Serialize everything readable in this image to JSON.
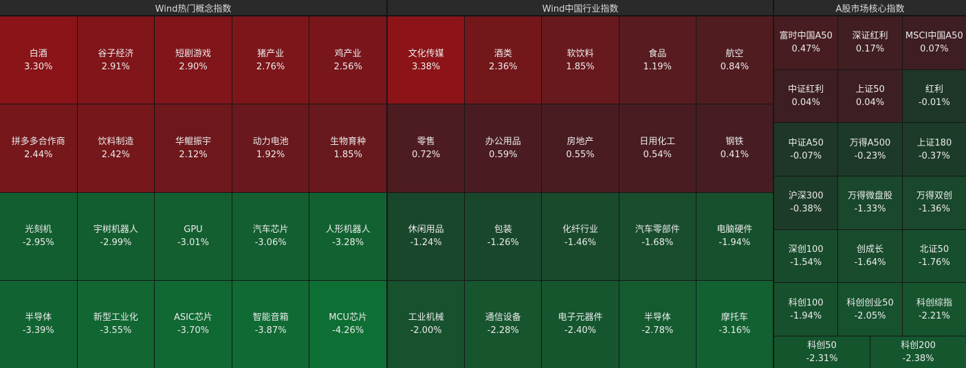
{
  "panels": [
    {
      "title": "Wind热门概念指数",
      "rows": [
        [
          {
            "name": "白酒",
            "value": 3.3,
            "value_label": "3.30%"
          },
          {
            "name": "谷子经济",
            "value": 2.91,
            "value_label": "2.91%"
          },
          {
            "name": "短剧游戏",
            "value": 2.9,
            "value_label": "2.90%"
          },
          {
            "name": "猪产业",
            "value": 2.76,
            "value_label": "2.76%"
          },
          {
            "name": "鸡产业",
            "value": 2.56,
            "value_label": "2.56%"
          }
        ],
        [
          {
            "name": "拼多多合作商",
            "value": 2.44,
            "value_label": "2.44%"
          },
          {
            "name": "饮料制造",
            "value": 2.42,
            "value_label": "2.42%"
          },
          {
            "name": "华鲲振宇",
            "value": 2.12,
            "value_label": "2.12%"
          },
          {
            "name": "动力电池",
            "value": 1.92,
            "value_label": "1.92%"
          },
          {
            "name": "生物育种",
            "value": 1.85,
            "value_label": "1.85%"
          }
        ],
        [
          {
            "name": "光刻机",
            "value": -2.95,
            "value_label": "-2.95%"
          },
          {
            "name": "宇树机器人",
            "value": -2.99,
            "value_label": "-2.99%"
          },
          {
            "name": "GPU",
            "value": -3.01,
            "value_label": "-3.01%"
          },
          {
            "name": "汽车芯片",
            "value": -3.06,
            "value_label": "-3.06%"
          },
          {
            "name": "人形机器人",
            "value": -3.28,
            "value_label": "-3.28%"
          }
        ],
        [
          {
            "name": "半导体",
            "value": -3.39,
            "value_label": "-3.39%"
          },
          {
            "name": "新型工业化",
            "value": -3.55,
            "value_label": "-3.55%"
          },
          {
            "name": "ASIC芯片",
            "value": -3.7,
            "value_label": "-3.70%"
          },
          {
            "name": "智能音箱",
            "value": -3.87,
            "value_label": "-3.87%"
          },
          {
            "name": "MCU芯片",
            "value": -4.26,
            "value_label": "-4.26%"
          }
        ]
      ]
    },
    {
      "title": "Wind中国行业指数",
      "rows": [
        [
          {
            "name": "文化传媒",
            "value": 3.38,
            "value_label": "3.38%"
          },
          {
            "name": "酒类",
            "value": 2.36,
            "value_label": "2.36%"
          },
          {
            "name": "软饮料",
            "value": 1.85,
            "value_label": "1.85%"
          },
          {
            "name": "食品",
            "value": 1.19,
            "value_label": "1.19%"
          },
          {
            "name": "航空",
            "value": 0.84,
            "value_label": "0.84%"
          }
        ],
        [
          {
            "name": "零售",
            "value": 0.72,
            "value_label": "0.72%"
          },
          {
            "name": "办公用品",
            "value": 0.59,
            "value_label": "0.59%"
          },
          {
            "name": "房地产",
            "value": 0.55,
            "value_label": "0.55%"
          },
          {
            "name": "日用化工",
            "value": 0.54,
            "value_label": "0.54%"
          },
          {
            "name": "钢铁",
            "value": 0.41,
            "value_label": "0.41%"
          }
        ],
        [
          {
            "name": "休闲用品",
            "value": -1.24,
            "value_label": "-1.24%"
          },
          {
            "name": "包装",
            "value": -1.26,
            "value_label": "-1.26%"
          },
          {
            "name": "化纤行业",
            "value": -1.46,
            "value_label": "-1.46%"
          },
          {
            "name": "汽车零部件",
            "value": -1.68,
            "value_label": "-1.68%"
          },
          {
            "name": "电脑硬件",
            "value": -1.94,
            "value_label": "-1.94%"
          }
        ],
        [
          {
            "name": "工业机械",
            "value": -2.0,
            "value_label": "-2.00%"
          },
          {
            "name": "通信设备",
            "value": -2.28,
            "value_label": "-2.28%"
          },
          {
            "name": "电子元器件",
            "value": -2.4,
            "value_label": "-2.40%"
          },
          {
            "name": "半导体",
            "value": -2.78,
            "value_label": "-2.78%"
          },
          {
            "name": "摩托车",
            "value": -3.16,
            "value_label": "-3.16%"
          }
        ]
      ]
    },
    {
      "title": "A股市场核心指数",
      "rows": [
        [
          {
            "name": "富时中国A50",
            "value": 0.47,
            "value_label": "0.47%"
          },
          {
            "name": "深证红利",
            "value": 0.17,
            "value_label": "0.17%"
          },
          {
            "name": "MSCI中国A50",
            "value": 0.07,
            "value_label": "0.07%"
          }
        ],
        [
          {
            "name": "中证红利",
            "value": 0.04,
            "value_label": "0.04%"
          },
          {
            "name": "上证50",
            "value": 0.04,
            "value_label": "0.04%"
          },
          {
            "name": "红利",
            "value": -0.01,
            "value_label": "-0.01%"
          }
        ],
        [
          {
            "name": "中证A50",
            "value": -0.07,
            "value_label": "-0.07%"
          },
          {
            "name": "万得A500",
            "value": -0.23,
            "value_label": "-0.23%"
          },
          {
            "name": "上证180",
            "value": -0.37,
            "value_label": "-0.37%"
          }
        ],
        [
          {
            "name": "沪深300",
            "value": -0.38,
            "value_label": "-0.38%"
          },
          {
            "name": "万得微盘股",
            "value": -1.33,
            "value_label": "-1.33%"
          },
          {
            "name": "万得双创",
            "value": -1.36,
            "value_label": "-1.36%"
          }
        ],
        [
          {
            "name": "深创100",
            "value": -1.54,
            "value_label": "-1.54%"
          },
          {
            "name": "创成长",
            "value": -1.64,
            "value_label": "-1.64%"
          },
          {
            "name": "北证50",
            "value": -1.76,
            "value_label": "-1.76%"
          }
        ],
        [
          {
            "name": "科创100",
            "value": -1.94,
            "value_label": "-1.94%"
          },
          {
            "name": "科创创业50",
            "value": -2.05,
            "value_label": "-2.05%"
          },
          {
            "name": "科创综指",
            "value": -2.21,
            "value_label": "-2.21%"
          }
        ],
        [
          {
            "name": "科创50",
            "value": -2.31,
            "value_label": "-2.31%"
          },
          {
            "name": "科创200",
            "value": -2.38,
            "value_label": "-2.38%"
          }
        ]
      ]
    }
  ]
}
